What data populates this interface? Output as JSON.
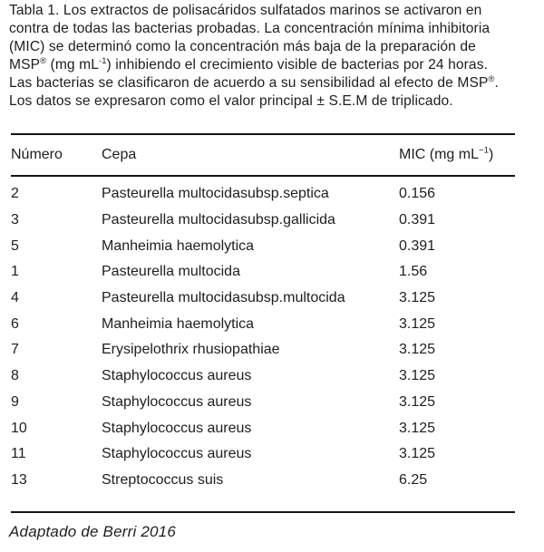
{
  "page": {
    "background_color": "#ffffff",
    "text_color": "#1e1e1e",
    "rule_color": "#141414"
  },
  "caption": {
    "lines": [
      [
        {
          "t": "Tabla 1. Los extractos de polisacáridos sulfatados marinos se activaron en"
        }
      ],
      [
        {
          "t": "contra de todas las bacterias probadas. La concentración mínima inhibitoria"
        }
      ],
      [
        {
          "t": "(MIC) se determinó como la concentración más baja de la preparación de"
        }
      ],
      [
        {
          "t": "MSP"
        },
        {
          "t": "®",
          "sup": true
        },
        {
          "t": " (mg mL"
        },
        {
          "t": "-1",
          "sup": true
        },
        {
          "t": ") inhibiendo el crecimiento visible de bacterias por 24 horas."
        }
      ],
      [
        {
          "t": "Las bacterias se clasificaron de acuerdo a su sensibilidad al efecto de MSP"
        },
        {
          "t": "®",
          "sup": true
        },
        {
          "t": "."
        }
      ],
      [
        {
          "t": "Los datos se expresaron como el valor principal ± S.E.M de triplicado."
        }
      ]
    ]
  },
  "table": {
    "columns": [
      {
        "key": "numero",
        "segments": [
          {
            "t": "Número"
          }
        ]
      },
      {
        "key": "cepa",
        "segments": [
          {
            "t": "Cepa"
          }
        ]
      },
      {
        "key": "mic",
        "segments": [
          {
            "t": "MIC (mg mL"
          },
          {
            "t": "−1",
            "sup": true
          },
          {
            "t": ")"
          }
        ]
      }
    ],
    "rows": [
      {
        "numero": "2",
        "cepa": "Pasteurella multocidasubsp.septica",
        "mic": "0.156"
      },
      {
        "numero": "3",
        "cepa": "Pasteurella multocidasubsp.gallicida",
        "mic": "0.391"
      },
      {
        "numero": "5",
        "cepa": "Manheimia haemolytica",
        "mic": "0.391"
      },
      {
        "numero": "1",
        "cepa": "Pasteurella multocida",
        "mic": "1.56"
      },
      {
        "numero": "4",
        "cepa": "Pasteurella multocidasubsp.multocida",
        "mic": "3.125"
      },
      {
        "numero": "6",
        "cepa": "Manheimia haemolytica",
        "mic": "3.125"
      },
      {
        "numero": "7",
        "cepa": "Erysipelothrix rhusiopathiae",
        "mic": "3.125"
      },
      {
        "numero": "8",
        "cepa": "Staphylococcus aureus",
        "mic": "3.125"
      },
      {
        "numero": "9",
        "cepa": "Staphylococcus aureus",
        "mic": "3.125"
      },
      {
        "numero": "10",
        "cepa": "Staphylococcus aureus",
        "mic": "3.125"
      },
      {
        "numero": "11",
        "cepa": "Staphylococcus aureus",
        "mic": "3.125"
      },
      {
        "numero": "13",
        "cepa": "Streptococcus suis",
        "mic": "6.25"
      }
    ]
  },
  "footer": {
    "text": "Adaptado de Berri 2016"
  }
}
